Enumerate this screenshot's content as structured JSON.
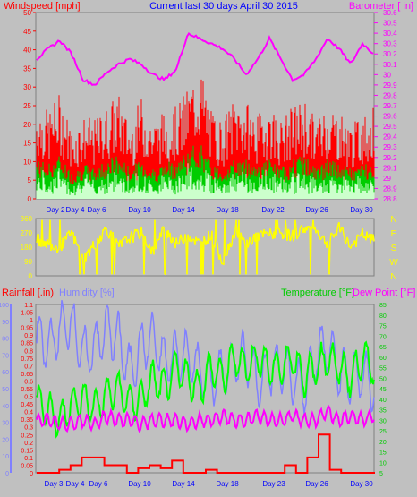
{
  "header": {
    "left_title": "Windspeed [mph]",
    "center_title": "Current last 30 days April 30 2015",
    "right_title": "Barometer [ in]"
  },
  "colors": {
    "background": "#c0c0c0",
    "wind_gust": "#ff0000",
    "wind_avg": "#00cc00",
    "wind_min": "#ccffcc",
    "barometer": "#ff00ff",
    "direction": "#ffff00",
    "rainfall": "#ff0000",
    "humidity": "#8080ff",
    "temperature": "#00ff00",
    "dew_point": "#ff00ff",
    "title_blue": "#0000ff"
  },
  "panel2_header": {
    "rain_label": "Rainfall [.in)",
    "hum_label": "Humidity [%]",
    "temp_label": "Temperature [°F]",
    "dew_label": "Dew Point [°F]"
  },
  "day_labels": [
    "Day 2",
    "Day 4",
    "Day 6",
    "Day 10",
    "Day 14",
    "Day 18",
    "Day 22",
    "Day 26",
    "Day 30"
  ],
  "day_labels_bottom": [
    "Day 3",
    "Day 4",
    "Day 6",
    "Day 10",
    "Day 14",
    "Day 18",
    "Day 23",
    "Day 26",
    "Day 30"
  ],
  "compass_labels": [
    "N",
    "W",
    "S",
    "E",
    "N"
  ],
  "chart_data": [
    {
      "type": "line",
      "name": "wind_barometer",
      "x": [
        1,
        2,
        3,
        4,
        5,
        6,
        7,
        8,
        9,
        10,
        11,
        12,
        13,
        14,
        15,
        16,
        17,
        18,
        19,
        20,
        21,
        22,
        23,
        24,
        25,
        26,
        27,
        28,
        29,
        30
      ],
      "series": [
        {
          "name": "Windspeed gust",
          "values": [
            21,
            19,
            23,
            15,
            18,
            17,
            20,
            23,
            16,
            22,
            17,
            19,
            20,
            24,
            30,
            19,
            17,
            22,
            21,
            18,
            21,
            17,
            20,
            22,
            17,
            21,
            19,
            16,
            18,
            20
          ]
        },
        {
          "name": "Windspeed avg",
          "values": [
            9,
            8,
            10,
            6,
            8,
            7,
            9,
            10,
            7,
            9,
            7,
            8,
            9,
            11,
            13,
            8,
            7,
            9,
            9,
            8,
            9,
            7,
            9,
            10,
            7,
            9,
            8,
            7,
            8,
            9
          ]
        },
        {
          "name": "Barometer",
          "values": [
            30.15,
            30.25,
            30.33,
            30.2,
            29.95,
            29.9,
            30.02,
            30.1,
            30.15,
            30.1,
            30.0,
            29.95,
            30.05,
            30.4,
            30.35,
            30.3,
            30.25,
            30.15,
            30.0,
            30.15,
            30.35,
            30.15,
            29.95,
            30.0,
            30.15,
            30.35,
            30.25,
            30.1,
            30.3,
            30.2
          ]
        }
      ],
      "ylim_left": [
        0,
        50
      ],
      "ylim_right": [
        28.8,
        30.6
      ],
      "left_ticks": [
        "0",
        "5",
        "10",
        "15",
        "20",
        "25",
        "30",
        "35",
        "40",
        "45",
        "50"
      ],
      "right_ticks": [
        "28.8",
        "28.9",
        "29",
        "29.1",
        "29.2",
        "29.3",
        "29.4",
        "29.5",
        "29.6",
        "29.7",
        "29.8",
        "29.9",
        "30",
        "30.1",
        "30.2",
        "30.3",
        "30.4",
        "30.5",
        "30.6"
      ]
    },
    {
      "type": "line",
      "name": "wind_direction",
      "x": [
        1,
        2,
        3,
        4,
        5,
        6,
        7,
        8,
        9,
        10,
        11,
        12,
        13,
        14,
        15,
        16,
        17,
        18,
        19,
        20,
        21,
        22,
        23,
        24,
        25,
        26,
        27,
        28,
        29,
        30
      ],
      "series": [
        {
          "name": "Direction",
          "values": [
            230,
            200,
            180,
            270,
            100,
            200,
            300,
            180,
            240,
            270,
            150,
            300,
            200,
            260,
            200,
            260,
            90,
            270,
            200,
            250,
            260,
            270,
            250,
            300,
            290,
            200,
            300,
            180,
            260,
            220
          ]
        }
      ],
      "ylim": [
        0,
        360
      ],
      "left_ticks": [
        "0",
        "90",
        "180",
        "270",
        "360"
      ]
    },
    {
      "type": "line",
      "name": "rain_humidity_temp_dew",
      "x": [
        1,
        2,
        3,
        4,
        5,
        6,
        7,
        8,
        9,
        10,
        11,
        12,
        13,
        14,
        15,
        16,
        17,
        18,
        19,
        20,
        21,
        22,
        23,
        24,
        25,
        26,
        27,
        28,
        29,
        30
      ],
      "series": [
        {
          "name": "Humidity",
          "values": [
            80,
            75,
            85,
            90,
            70,
            75,
            85,
            80,
            60,
            75,
            80,
            65,
            70,
            70,
            60,
            55,
            60,
            65,
            70,
            55,
            60,
            65,
            55,
            50,
            70,
            75,
            60,
            55,
            60,
            50
          ]
        },
        {
          "name": "Temperature",
          "values": [
            40,
            35,
            30,
            38,
            40,
            36,
            42,
            45,
            38,
            40,
            50,
            45,
            55,
            50,
            45,
            55,
            50,
            60,
            55,
            60,
            55,
            55,
            60,
            50,
            55,
            60,
            55,
            50,
            60,
            55
          ]
        },
        {
          "name": "Dew Point",
          "values": [
            30,
            30,
            28,
            28,
            30,
            28,
            32,
            30,
            30,
            28,
            30,
            30,
            30,
            28,
            30,
            30,
            32,
            30,
            30,
            32,
            30,
            30,
            32,
            30,
            30,
            34,
            30,
            32,
            30,
            32
          ]
        },
        {
          "name": "Rainfall",
          "values": [
            0,
            0,
            0.02,
            0.05,
            0.1,
            0.1,
            0.05,
            0.05,
            0,
            0.03,
            0.05,
            0.03,
            0.08,
            0,
            0,
            0.02,
            0,
            0,
            0,
            0,
            0,
            0,
            0.05,
            0,
            0.1,
            0.25,
            0.02,
            0,
            0,
            0
          ]
        }
      ],
      "ylim_rain": [
        0,
        1.1
      ],
      "ylim_hum": [
        0,
        100
      ],
      "ylim_temp": [
        5,
        85
      ],
      "rain_ticks": [
        "0",
        "0.05",
        "0.1",
        "0.15",
        "0.2",
        "0.25",
        "0.3",
        "0.35",
        "0.4",
        "0.45",
        "0.5",
        "0.55",
        "0.6",
        "0.65",
        "0.7",
        "0.75",
        "0.8",
        "0.85",
        "0.9",
        "0.95",
        "1",
        "1.05",
        "1.1"
      ],
      "hum_ticks": [
        "0",
        "10",
        "20",
        "30",
        "40",
        "50",
        "60",
        "70",
        "80",
        "90",
        "100"
      ],
      "temp_ticks": [
        "5",
        "10",
        "15",
        "20",
        "25",
        "30",
        "35",
        "40",
        "45",
        "50",
        "55",
        "60",
        "65",
        "70",
        "75",
        "80",
        "85"
      ]
    }
  ]
}
